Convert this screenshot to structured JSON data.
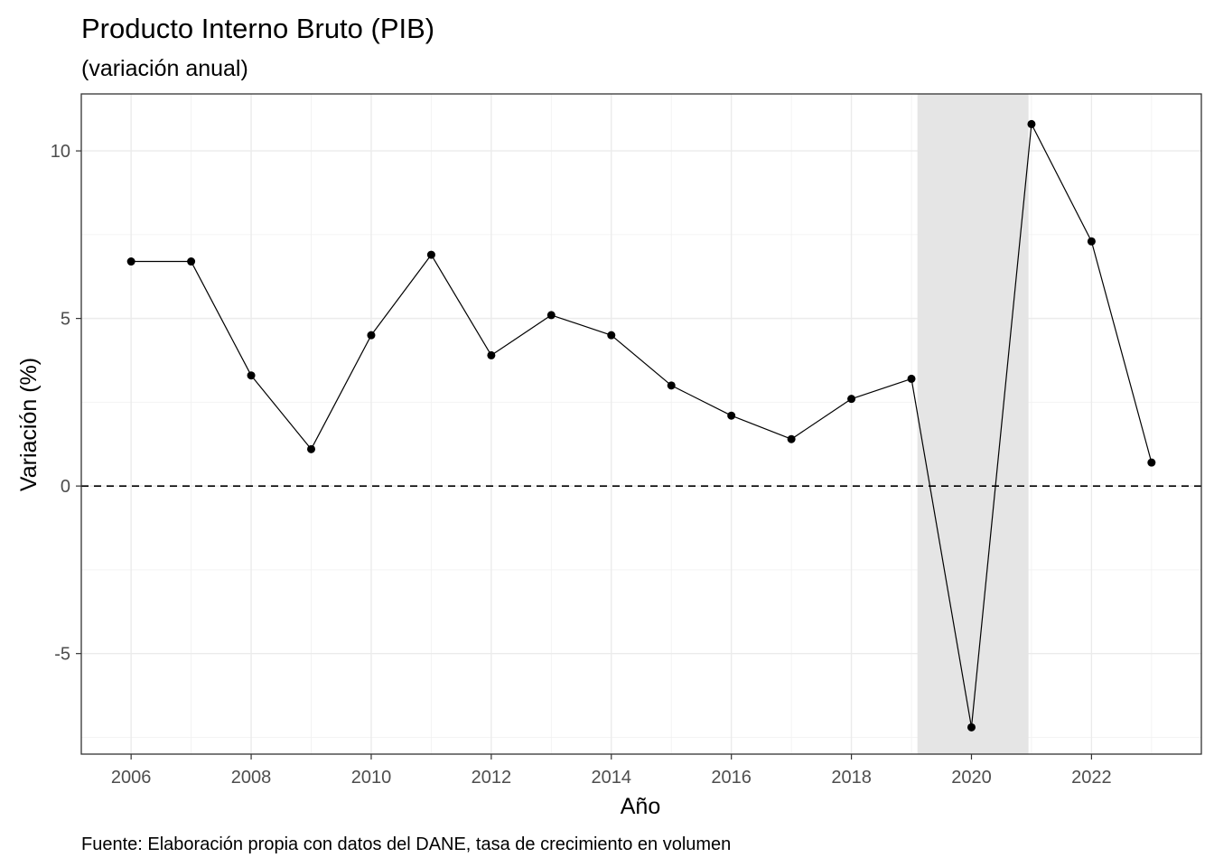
{
  "chart_data": {
    "type": "line",
    "title": "Producto Interno Bruto (PIB)",
    "subtitle": "(variación anual)",
    "xlabel": "Año",
    "ylabel": "Variación (%)",
    "caption": "Fuente: Elaboración propia con datos del DANE, tasa de crecimiento en volumen",
    "x": [
      2006,
      2007,
      2008,
      2009,
      2010,
      2011,
      2012,
      2013,
      2014,
      2015,
      2016,
      2017,
      2018,
      2019,
      2020,
      2021,
      2022,
      2023
    ],
    "series": [
      {
        "values": [
          6.7,
          6.7,
          3.3,
          1.1,
          4.5,
          6.9,
          3.9,
          5.1,
          4.5,
          3.0,
          2.1,
          1.4,
          2.6,
          3.2,
          -7.2,
          10.8,
          7.3,
          0.7
        ]
      }
    ],
    "xlim": [
      2005.17,
      2023.83
    ],
    "ylim": [
      -8.0,
      11.7
    ],
    "x_ticks": [
      2006,
      2008,
      2010,
      2012,
      2014,
      2016,
      2018,
      2020,
      2022
    ],
    "x_tick_labels": [
      "2006",
      "2008",
      "2010",
      "2012",
      "2014",
      "2016",
      "2018",
      "2020",
      "2022"
    ],
    "y_ticks": [
      -5,
      0,
      5,
      10
    ],
    "y_tick_labels": [
      "-5",
      "0",
      "5",
      "10"
    ],
    "shaded_region": {
      "x_from": 2019.1,
      "x_to": 2020.95,
      "color": "#e5e5e5"
    },
    "reference_line": {
      "y": 0,
      "style": "dashed",
      "color": "#000000"
    },
    "grid": true,
    "line_color": "#000000",
    "point_color": "#000000",
    "legend": "none"
  }
}
